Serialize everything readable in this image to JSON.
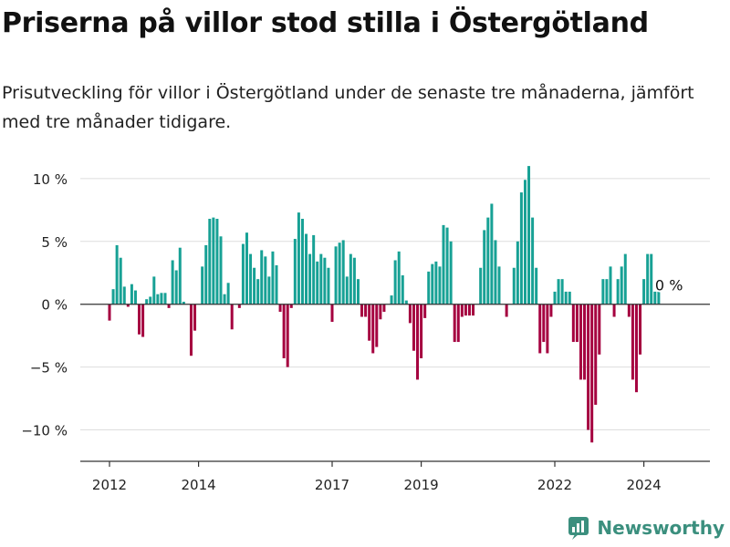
{
  "title": "Priserna på villor stod stilla i Östergötland",
  "subtitle": "Prisutveckling för villor i Östergötland under de senaste tre månaderna, jämfört med tre månader tidigare.",
  "brand": "Newsworthy",
  "colors": {
    "positive": "#17a195",
    "negative": "#a5003f",
    "grid": "#dddddd",
    "axis": "#333333",
    "brand": "#3b8f7e"
  },
  "chart_data": {
    "type": "bar",
    "title": "Priserna på villor stod stilla i Östergötland",
    "xlabel": "",
    "ylabel": "",
    "ylim": [
      -12.5,
      10.5
    ],
    "grid": true,
    "x_ticks": [
      {
        "year": 2012,
        "label": "2012"
      },
      {
        "year": 2014,
        "label": "2014"
      },
      {
        "year": 2017,
        "label": "2017"
      },
      {
        "year": 2019,
        "label": "2019"
      },
      {
        "year": 2022,
        "label": "2022"
      },
      {
        "year": 2024,
        "label": "2024"
      }
    ],
    "y_ticks": [
      {
        "value": 10,
        "label": "10 %"
      },
      {
        "value": 5,
        "label": "5 %"
      },
      {
        "value": 0,
        "label": "0 %"
      },
      {
        "value": -5,
        "label": "−5 %"
      },
      {
        "value": -10,
        "label": "−10 %"
      }
    ],
    "start": "2012-01",
    "values": [
      -1.3,
      1.2,
      4.7,
      3.7,
      1.4,
      -0.2,
      1.6,
      1.1,
      -2.4,
      -2.6,
      0.4,
      0.6,
      2.2,
      0.8,
      0.9,
      0.9,
      -0.3,
      3.5,
      2.7,
      4.5,
      0.2,
      0,
      -4.1,
      -2.1,
      0,
      3.0,
      4.7,
      6.8,
      6.9,
      6.8,
      5.4,
      0.8,
      1.7,
      -2.0,
      0,
      -0.3,
      4.8,
      5.7,
      4.0,
      2.9,
      2.0,
      4.3,
      3.8,
      2.2,
      4.2,
      3.1,
      -0.6,
      -4.3,
      -5.0,
      -0.3,
      5.2,
      7.3,
      6.8,
      5.6,
      4.0,
      5.5,
      3.4,
      4.0,
      3.7,
      2.9,
      -1.4,
      4.6,
      4.9,
      5.1,
      2.2,
      4.0,
      3.7,
      2.0,
      -1.0,
      -1.0,
      -2.9,
      -3.9,
      -3.4,
      -1.2,
      -0.6,
      0,
      0.7,
      3.5,
      4.2,
      2.3,
      0.3,
      -1.5,
      -3.7,
      -6.0,
      -4.3,
      -1.1,
      2.6,
      3.2,
      3.4,
      3.0,
      6.3,
      6.1,
      5.0,
      -3.0,
      -3.0,
      -1.0,
      -0.9,
      -0.9,
      -0.9,
      0,
      2.9,
      5.9,
      6.9,
      8.0,
      5.1,
      3.0,
      0,
      -1.0,
      0,
      2.9,
      5.0,
      8.9,
      9.9,
      11.0,
      6.9,
      2.9,
      -3.9,
      -3.0,
      -3.9,
      -1.0,
      1.0,
      2.0,
      2.0,
      1.0,
      1.0,
      -3.0,
      -3.0,
      -6.0,
      -6.0,
      -10.0,
      -11.0,
      -8.0,
      -4.0,
      2.0,
      2.0,
      3.0,
      -1.0,
      2.0,
      3.0,
      4.0,
      -1.0,
      -6.0,
      -7.0,
      -4.0,
      2.0,
      4.0,
      4.0,
      1.0,
      1.0,
      0
    ],
    "annotation": {
      "label": "0 %",
      "value": 0
    }
  }
}
